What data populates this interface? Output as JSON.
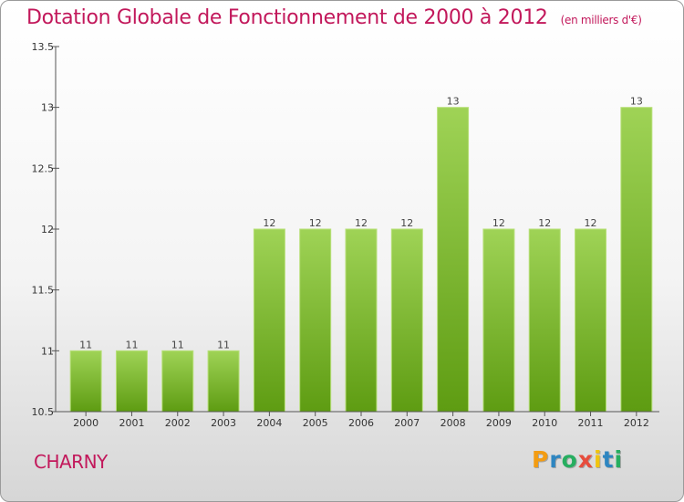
{
  "title": "Dotation Globale de Fonctionnement de 2000 à 2012",
  "unit": "(en milliers d'€)",
  "commune": "CHARNY",
  "logo": {
    "letters": [
      "P",
      "r",
      "o",
      "x",
      "i",
      "t",
      "i"
    ],
    "colors": [
      "#f39c12",
      "#2e86c1",
      "#27ae60",
      "#e74c3c",
      "#f1c40f",
      "#2e86c1",
      "#27ae60"
    ]
  },
  "colors": {
    "title": "#c2185b",
    "bar_light": "#9fd356",
    "bar_dark": "#5e9c12"
  },
  "chart_data": {
    "type": "bar",
    "categories": [
      "2000",
      "2001",
      "2002",
      "2003",
      "2004",
      "2005",
      "2006",
      "2007",
      "2008",
      "2009",
      "2010",
      "2011",
      "2012"
    ],
    "values": [
      11,
      11,
      11,
      11,
      12,
      12,
      12,
      12,
      13,
      12,
      12,
      12,
      13
    ],
    "data_labels": [
      "11",
      "11",
      "11",
      "11",
      "12",
      "12",
      "12",
      "12",
      "13",
      "12",
      "12",
      "12",
      "13"
    ],
    "ylim": [
      10.5,
      13.5
    ],
    "yticks": [
      10.5,
      11,
      11.5,
      12,
      12.5,
      13,
      13.5
    ],
    "ytick_labels": [
      "10.5",
      "11",
      "11.5",
      "12",
      "12.5",
      "13",
      "13.5"
    ],
    "xlabel": "",
    "ylabel": "",
    "grid": false
  }
}
